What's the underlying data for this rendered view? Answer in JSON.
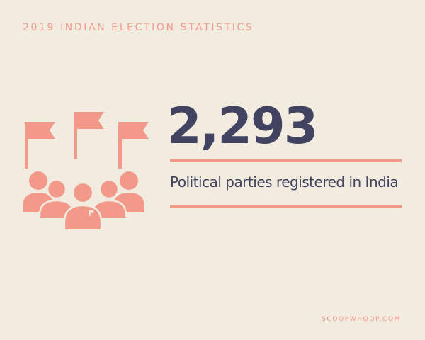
{
  "header": {
    "title": "2019 INDIAN ELECTION STATISTICS"
  },
  "stat": {
    "value": "2,293",
    "caption": "Political parties registered in India"
  },
  "footer": {
    "source": "SCOOPWHOOP.COM"
  },
  "colors": {
    "background": "#f2ebe0",
    "accent": "#f2998a",
    "text": "#414360"
  },
  "illustration": {
    "icon": "crowd-with-flags-icon"
  }
}
